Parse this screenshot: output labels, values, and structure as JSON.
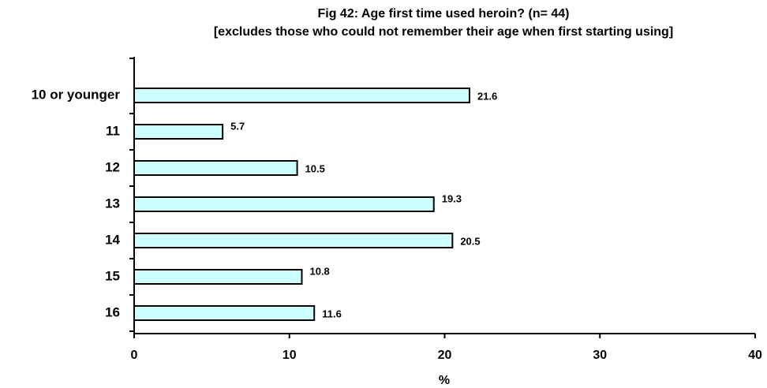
{
  "chart_data": {
    "type": "bar",
    "orientation": "horizontal",
    "title": "Fig 42:   Age first time used heroin?  (n= 44)",
    "subtitle": "[excludes those who could not remember their age when first starting using]",
    "x_label": "%",
    "categories": [
      "10 or younger",
      "11",
      "12",
      "13",
      "14",
      "15",
      "16"
    ],
    "values": [
      21.6,
      5.7,
      10.5,
      19.3,
      20.5,
      10.8,
      11.6
    ],
    "color": "#ccffff",
    "xlim": [
      0,
      40
    ],
    "xticks": [
      0,
      10,
      20,
      30,
      40
    ],
    "grid": false
  }
}
